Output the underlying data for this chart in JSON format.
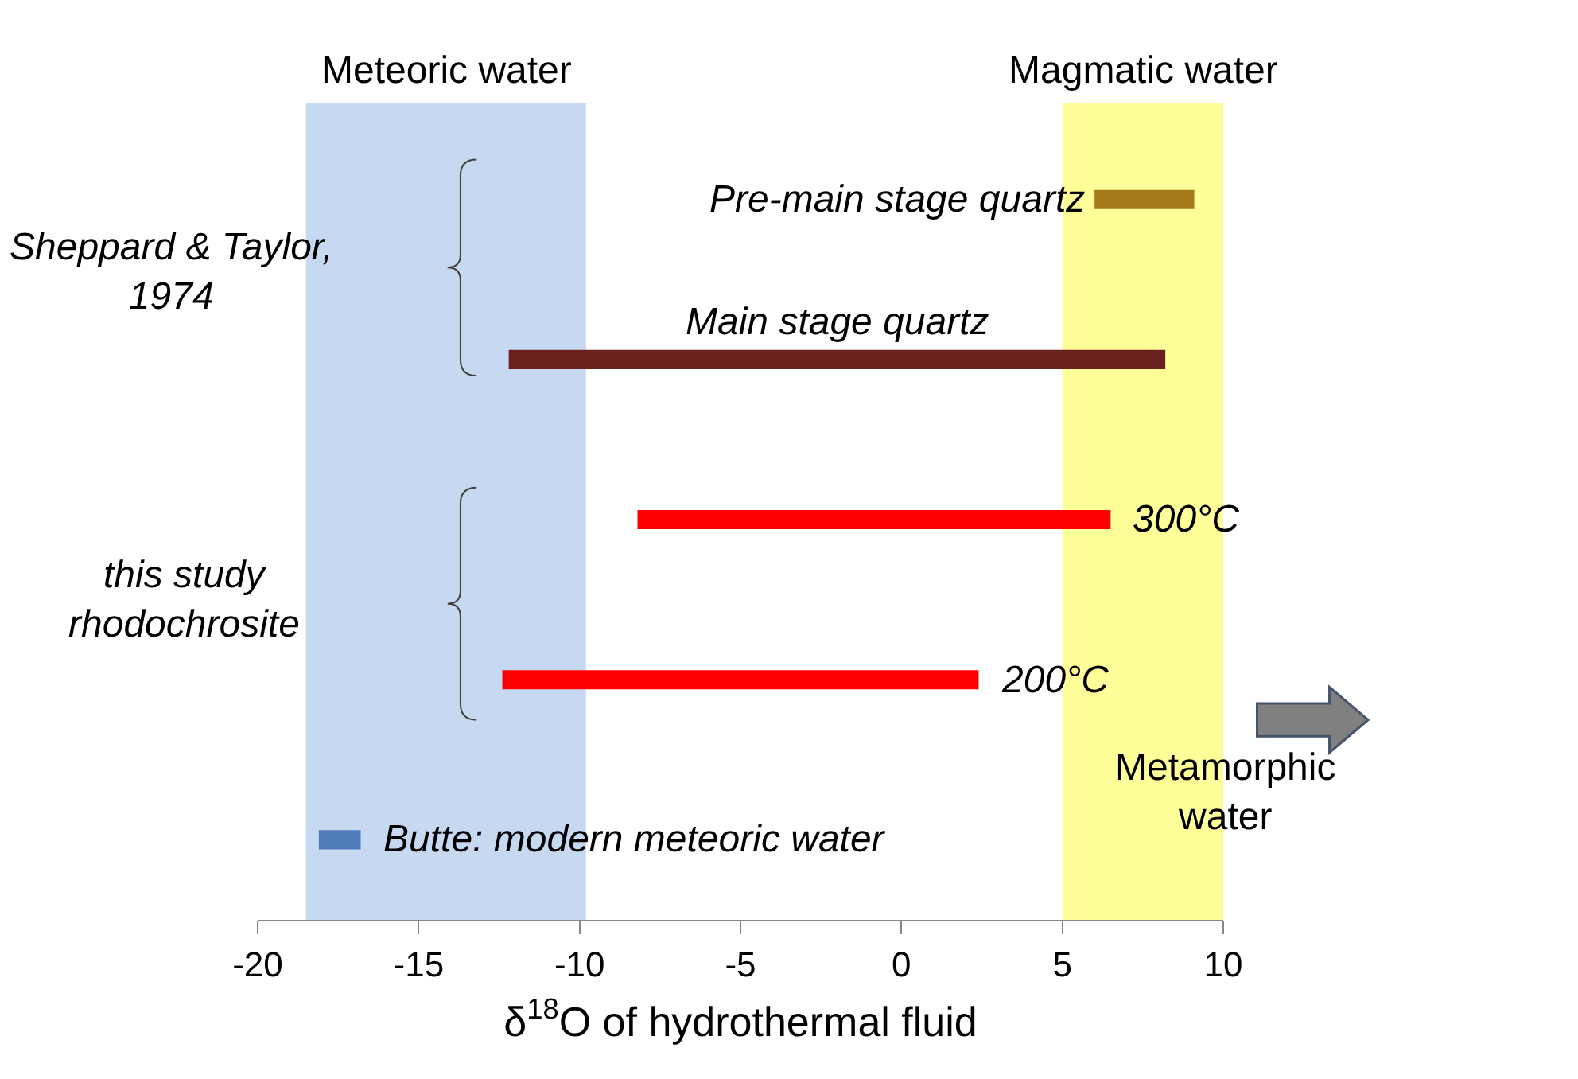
{
  "chart_data": {
    "type": "bar",
    "orientation": "horizontal",
    "xlabel": "δ$^{18}$O of hydrothermal fluid",
    "categories": [
      "Pre-main stage quartz",
      "Main stage quartz",
      "300°C",
      "200°C",
      "Butte: modern meteoric water"
    ],
    "values": [
      3.1,
      20.4,
      14.7,
      14.8,
      1.3
    ],
    "base": [
      6,
      -12.2,
      -8.2,
      -12.4,
      -18.1
    ],
    "colors": [
      "#a67c1a",
      "#6b1f1f",
      "#ff0000",
      "#ff0000",
      "#4f7cb8"
    ],
    "xlim": [
      -20,
      10
    ],
    "xticks": [
      -20,
      -15,
      -10,
      -5,
      0,
      5,
      10
    ],
    "tick_labels": "x",
    "grid": false,
    "bands": [
      {
        "axis": "x",
        "from": -18.5,
        "to": -9.8,
        "label": "Meteoric water",
        "color": "#c6d9f0"
      },
      {
        "axis": "x",
        "from": 5,
        "to": 10,
        "label": "Magmatic water",
        "color": "#ffff99"
      }
    ],
    "annotations": [
      "Sheppard & Taylor,\n1974",
      "this study\nrhodochrosite",
      "Metamorphic\nwater"
    ]
  }
}
